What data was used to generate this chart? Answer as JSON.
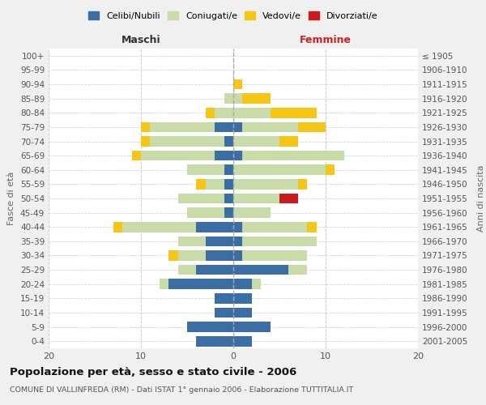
{
  "age_groups": [
    "0-4",
    "5-9",
    "10-14",
    "15-19",
    "20-24",
    "25-29",
    "30-34",
    "35-39",
    "40-44",
    "45-49",
    "50-54",
    "55-59",
    "60-64",
    "65-69",
    "70-74",
    "75-79",
    "80-84",
    "85-89",
    "90-94",
    "95-99",
    "100+"
  ],
  "birth_years": [
    "2001-2005",
    "1996-2000",
    "1991-1995",
    "1986-1990",
    "1981-1985",
    "1976-1980",
    "1971-1975",
    "1966-1970",
    "1961-1965",
    "1956-1960",
    "1951-1955",
    "1946-1950",
    "1941-1945",
    "1936-1940",
    "1931-1935",
    "1926-1930",
    "1921-1925",
    "1916-1920",
    "1911-1915",
    "1906-1910",
    "≤ 1905"
  ],
  "male": {
    "celibi": [
      4,
      5,
      2,
      2,
      7,
      4,
      3,
      3,
      4,
      1,
      1,
      1,
      1,
      2,
      1,
      2,
      0,
      0,
      0,
      0,
      0
    ],
    "coniugati": [
      0,
      0,
      0,
      0,
      1,
      2,
      3,
      3,
      8,
      4,
      5,
      2,
      4,
      8,
      8,
      7,
      2,
      1,
      0,
      0,
      0
    ],
    "vedovi": [
      0,
      0,
      0,
      0,
      0,
      0,
      1,
      0,
      1,
      0,
      0,
      1,
      0,
      1,
      1,
      1,
      1,
      0,
      0,
      0,
      0
    ],
    "divorziati": [
      0,
      0,
      0,
      0,
      0,
      0,
      0,
      0,
      0,
      0,
      0,
      0,
      0,
      0,
      0,
      0,
      0,
      0,
      0,
      0,
      0
    ]
  },
  "female": {
    "celibi": [
      2,
      4,
      2,
      2,
      2,
      6,
      1,
      1,
      1,
      0,
      0,
      0,
      0,
      1,
      0,
      1,
      0,
      0,
      0,
      0,
      0
    ],
    "coniugati": [
      0,
      0,
      0,
      0,
      1,
      2,
      7,
      8,
      7,
      4,
      5,
      7,
      10,
      11,
      5,
      6,
      4,
      1,
      0,
      0,
      0
    ],
    "vedovi": [
      0,
      0,
      0,
      0,
      0,
      0,
      0,
      0,
      1,
      0,
      0,
      1,
      1,
      0,
      2,
      3,
      5,
      3,
      1,
      0,
      0
    ],
    "divorziati": [
      0,
      0,
      0,
      0,
      0,
      0,
      0,
      0,
      0,
      0,
      2,
      0,
      0,
      0,
      0,
      0,
      0,
      0,
      0,
      0,
      0
    ]
  },
  "colors": {
    "celibi": "#3a6ea5",
    "coniugati": "#c8dba8",
    "vedovi": "#f5c518",
    "divorziati": "#cc1a1a"
  },
  "xlim": 20,
  "title": "Popolazione per età, sesso e stato civile - 2006",
  "subtitle": "COMUNE DI VALLINFREDA (RM) - Dati ISTAT 1° gennaio 2006 - Elaborazione TUTTITALIA.IT",
  "ylabel_left": "Fasce di età",
  "ylabel_right": "Anni di nascita",
  "xlabel_left": "Maschi",
  "xlabel_right": "Femmine",
  "background_color": "#f0f0f0",
  "plot_background": "#ffffff"
}
